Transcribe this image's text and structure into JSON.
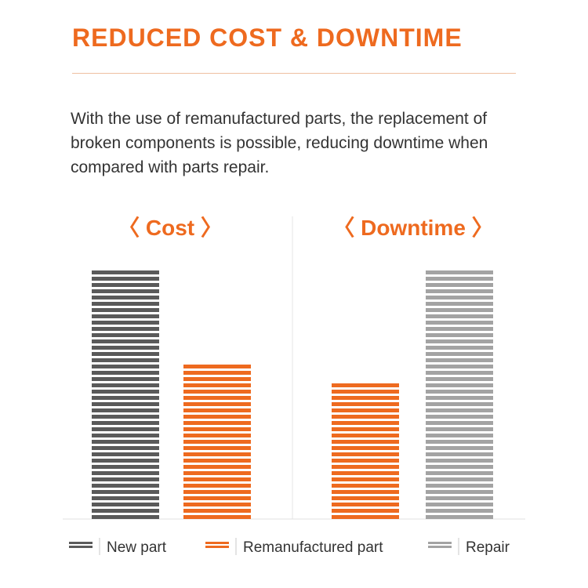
{
  "heading": {
    "title": "REDUCED COST & DOWNTIME",
    "description": "With the use of remanufactured parts, the replacement of broken components is possible, reducing downtime when compared with parts repair."
  },
  "colors": {
    "accent": "#ee6a1f",
    "new_part": "#5a5a5a",
    "remanufactured_part": "#ee6a1f",
    "repair": "#a3a3a3"
  },
  "chart_data": [
    {
      "type": "bar",
      "title": "〈 Cost 〉",
      "series": [
        {
          "name": "New part",
          "value": 100
        },
        {
          "name": "Remanufactured part",
          "value": 64
        }
      ],
      "ylim": [
        0,
        100
      ],
      "grid": false,
      "legend": "bottom"
    },
    {
      "type": "bar",
      "title": "〈 Downtime 〉",
      "series": [
        {
          "name": "Remanufactured part",
          "value": 57
        },
        {
          "name": "Repair",
          "value": 100
        }
      ],
      "ylim": [
        0,
        100
      ],
      "grid": false,
      "legend": "bottom"
    }
  ],
  "legend": [
    {
      "label": "New part",
      "color": "#5a5a5a"
    },
    {
      "label": "Remanufactured part",
      "color": "#ee6a1f"
    },
    {
      "label": "Repair",
      "color": "#a3a3a3"
    }
  ]
}
